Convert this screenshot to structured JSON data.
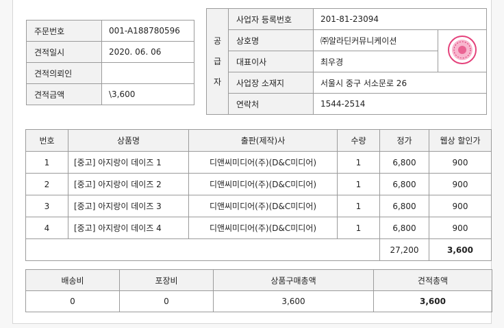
{
  "order": {
    "rows": [
      {
        "label": "주문번호",
        "value": "001-A188780596"
      },
      {
        "label": "견적일시",
        "value": "2020. 06. 06"
      },
      {
        "label": "견적의뢰인",
        "value": ""
      },
      {
        "label": "견적금액",
        "value": "\\3,600"
      }
    ]
  },
  "supplier": {
    "side_label": [
      "공",
      "급",
      "자"
    ],
    "rows": [
      {
        "label": "사업자 등록번호",
        "value": "201-81-23094"
      },
      {
        "label": "상호명",
        "value": "㈜알라딘커뮤니케이션"
      },
      {
        "label": "대표이사",
        "value": "최우경"
      },
      {
        "label": "사업장 소재지",
        "value": "서울시 중구 서소문로 26"
      },
      {
        "label": "연락처",
        "value": "1544-2514"
      }
    ],
    "seal_color": "#e4407a"
  },
  "items": {
    "headers": [
      "번호",
      "상품명",
      "출판(제작)사",
      "수량",
      "정가",
      "웹상 할인가"
    ],
    "rows": [
      {
        "no": "1",
        "name": "[중고] 아지랑이 데이즈 1",
        "publisher": "디앤씨미디어(주)(D&C미디어)",
        "qty": "1",
        "price": "6,800",
        "sale": "900"
      },
      {
        "no": "2",
        "name": "[중고] 아지랑이 데이즈 2",
        "publisher": "디앤씨미디어(주)(D&C미디어)",
        "qty": "1",
        "price": "6,800",
        "sale": "900"
      },
      {
        "no": "3",
        "name": "[중고] 아지랑이 데이즈 3",
        "publisher": "디앤씨미디어(주)(D&C미디어)",
        "qty": "1",
        "price": "6,800",
        "sale": "900"
      },
      {
        "no": "4",
        "name": "[중고] 아지랑이 데이즈 4",
        "publisher": "디앤씨미디어(주)(D&C미디어)",
        "qty": "1",
        "price": "6,800",
        "sale": "900"
      }
    ],
    "total_price": "27,200",
    "total_sale": "3,600"
  },
  "summary": {
    "headers": [
      "배송비",
      "포장비",
      "상품구매총액",
      "견적총액"
    ],
    "values": [
      "0",
      "0",
      "3,600",
      "3,600"
    ]
  }
}
